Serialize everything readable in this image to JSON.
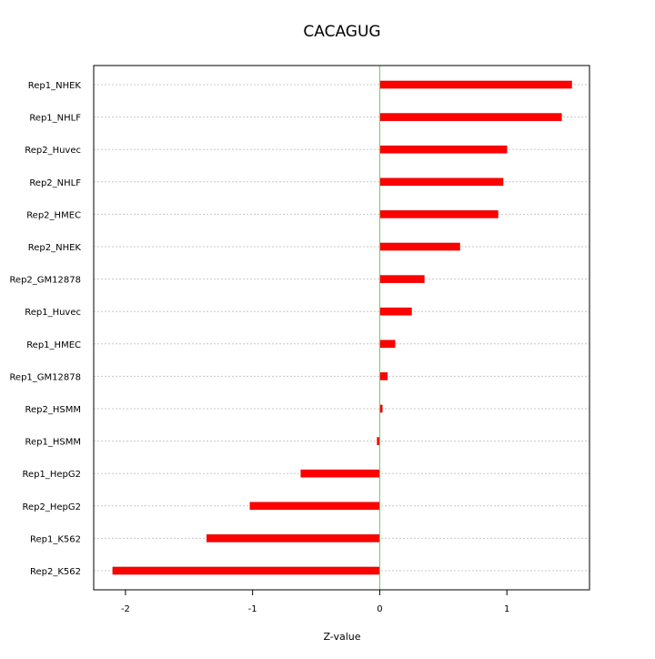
{
  "chart_data": {
    "type": "bar",
    "orientation": "horizontal",
    "title": "CACAGUG",
    "xlabel": "Z-value",
    "ylabel": "",
    "xlim": [
      -2.25,
      1.65
    ],
    "xticks": [
      -2,
      -1,
      0,
      1
    ],
    "xtick_labels": [
      "-2",
      "-1",
      "0",
      "1"
    ],
    "grid": "horizontal dotted",
    "zero_line_color": "#66cc66",
    "bar_color": "#ff0000",
    "categories": [
      "Rep1_NHEK",
      "Rep1_NHLF",
      "Rep2_Huvec",
      "Rep2_NHLF",
      "Rep2_HMEC",
      "Rep2_NHEK",
      "Rep2_GM12878",
      "Rep1_Huvec",
      "Rep1_HMEC",
      "Rep1_GM12878",
      "Rep2_HSMM",
      "Rep1_HSMM",
      "Rep1_HepG2",
      "Rep2_HepG2",
      "Rep1_K562",
      "Rep2_K562"
    ],
    "values": [
      1.51,
      1.43,
      1.0,
      0.97,
      0.93,
      0.63,
      0.35,
      0.25,
      0.12,
      0.06,
      0.02,
      -0.02,
      -0.62,
      -1.02,
      -1.36,
      -2.1
    ]
  }
}
